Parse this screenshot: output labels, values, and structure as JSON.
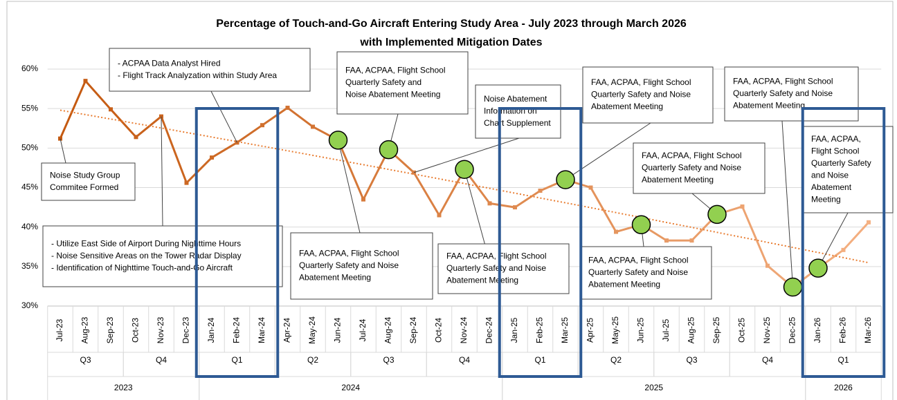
{
  "chart_data": {
    "type": "line",
    "title": [
      "Percentage of Touch-and-Go Aircraft Entering Study Area - July 2023 through March 2026",
      "with Implemented Mitigation Dates"
    ],
    "categories": [
      "Jul-23",
      "Aug-23",
      "Sep-23",
      "Oct-23",
      "Nov-23",
      "Dec-23",
      "Jan-24",
      "Feb-24",
      "Mar-24",
      "Apr-24",
      "May-24",
      "Jun-24",
      "Jul-24",
      "Aug-24",
      "Sep-24",
      "Oct-24",
      "Nov-24",
      "Dec-24",
      "Jan-25",
      "Feb-25",
      "Mar-25",
      "Apr-25",
      "May-25",
      "Jun-25",
      "Jul-25",
      "Aug-25",
      "Sep-25",
      "Oct-25",
      "Nov-25",
      "Dec-25",
      "Jan-26",
      "Feb-26",
      "Mar-26"
    ],
    "values": [
      51.2,
      58.5,
      54.9,
      51.4,
      54.0,
      45.6,
      48.8,
      50.7,
      52.9,
      55.1,
      52.7,
      51.0,
      43.5,
      49.8,
      46.9,
      41.5,
      47.3,
      43.0,
      42.5,
      44.6,
      46.0,
      45.0,
      39.4,
      40.3,
      38.3,
      38.3,
      41.6,
      42.6,
      35.1,
      32.4,
      34.8,
      37.1,
      40.6
    ],
    "colors": [
      "#c55a11",
      "#f4b183"
    ],
    "quarters": [
      {
        "label": "Q3",
        "start": 0,
        "end": 2
      },
      {
        "label": "Q4",
        "start": 3,
        "end": 5
      },
      {
        "label": "Q1",
        "start": 6,
        "end": 8
      },
      {
        "label": "Q2",
        "start": 9,
        "end": 11
      },
      {
        "label": "Q3",
        "start": 12,
        "end": 14
      },
      {
        "label": "Q4",
        "start": 15,
        "end": 17
      },
      {
        "label": "Q1",
        "start": 18,
        "end": 20
      },
      {
        "label": "Q2",
        "start": 21,
        "end": 23
      },
      {
        "label": "Q3",
        "start": 24,
        "end": 26
      },
      {
        "label": "Q4",
        "start": 27,
        "end": 29
      },
      {
        "label": "Q1",
        "start": 30,
        "end": 32
      }
    ],
    "years": [
      {
        "label": "2023",
        "start": 0,
        "end": 5
      },
      {
        "label": "2024",
        "start": 6,
        "end": 17
      },
      {
        "label": "2025",
        "start": 18,
        "end": 29
      },
      {
        "label": "2026",
        "start": 30,
        "end": 32
      }
    ],
    "highlight_quarters": [
      2,
      6,
      10
    ],
    "highlight_color": "#2e5a94",
    "mitigation_points": [
      11,
      13,
      16,
      20,
      23,
      26,
      29,
      30
    ],
    "mitigation_color": "#92d050",
    "trendline": {
      "type": "polynomial",
      "order": 2,
      "color": "#e87b2f"
    },
    "ylim": [
      30,
      60
    ],
    "yticks": [
      {
        "value": 30,
        "label": "30%"
      },
      {
        "value": 35,
        "label": "35%"
      },
      {
        "value": 40,
        "label": "40%"
      },
      {
        "value": 45,
        "label": "45%"
      },
      {
        "value": 50,
        "label": "50%"
      },
      {
        "value": 55,
        "label": "55%"
      },
      {
        "value": 60,
        "label": "60%"
      }
    ],
    "grid": true,
    "annotations": [
      {
        "point": 7,
        "lines": [
          "- ACPAA Data Analyst Hired",
          "- Flight Track Analyzation within Study Area"
        ]
      },
      {
        "point": 0,
        "lines": [
          "Noise Study Group",
          "Commitee Formed"
        ]
      },
      {
        "point": 4,
        "lines": [
          "- Utilize East Side of Airport During Nighttime Hours",
          "- Noise Sensitive Areas on the Tower Radar Display",
          "- Identification of Nighttime Touch-and-Go Aircraft"
        ]
      },
      {
        "point": 13,
        "lines": [
          "FAA, ACPAA, Flight School",
          "Quarterly Safety and",
          "Noise Abatement Meeting"
        ]
      },
      {
        "point": 14,
        "lines": [
          "Noise Abatement",
          "Information on",
          "Chart Supplement"
        ]
      },
      {
        "point": 20,
        "lines": [
          "FAA, ACPAA, Flight School",
          "Quarterly Safety and Noise",
          "Abatement Meeting"
        ]
      },
      {
        "point": 29,
        "lines": [
          "FAA, ACPAA, Flight School",
          "Quarterly Safety and Noise",
          "Abatement Meeting"
        ]
      },
      {
        "point": 26,
        "lines": [
          "FAA, ACPAA, Flight School",
          "Quarterly Safety and Noise",
          "Abatement Meeting"
        ]
      },
      {
        "point": 30,
        "lines": [
          "FAA, ACPAA,",
          "Flight School",
          "Quarterly Safety",
          "and Noise",
          "Abatement",
          "Meeting"
        ]
      },
      {
        "point": 11,
        "lines": [
          "FAA, ACPAA, Flight School",
          "Quarterly Safety and Noise",
          "Abatement Meeting"
        ]
      },
      {
        "point": 16,
        "lines": [
          "FAA, ACPAA, Flight School",
          "Quarterly Safety and Noise",
          "Abatement Meeting"
        ]
      },
      {
        "point": 23,
        "lines": [
          "FAA, ACPAA, Flight School",
          "Quarterly Safety and Noise",
          "Abatement Meeting"
        ]
      }
    ]
  }
}
